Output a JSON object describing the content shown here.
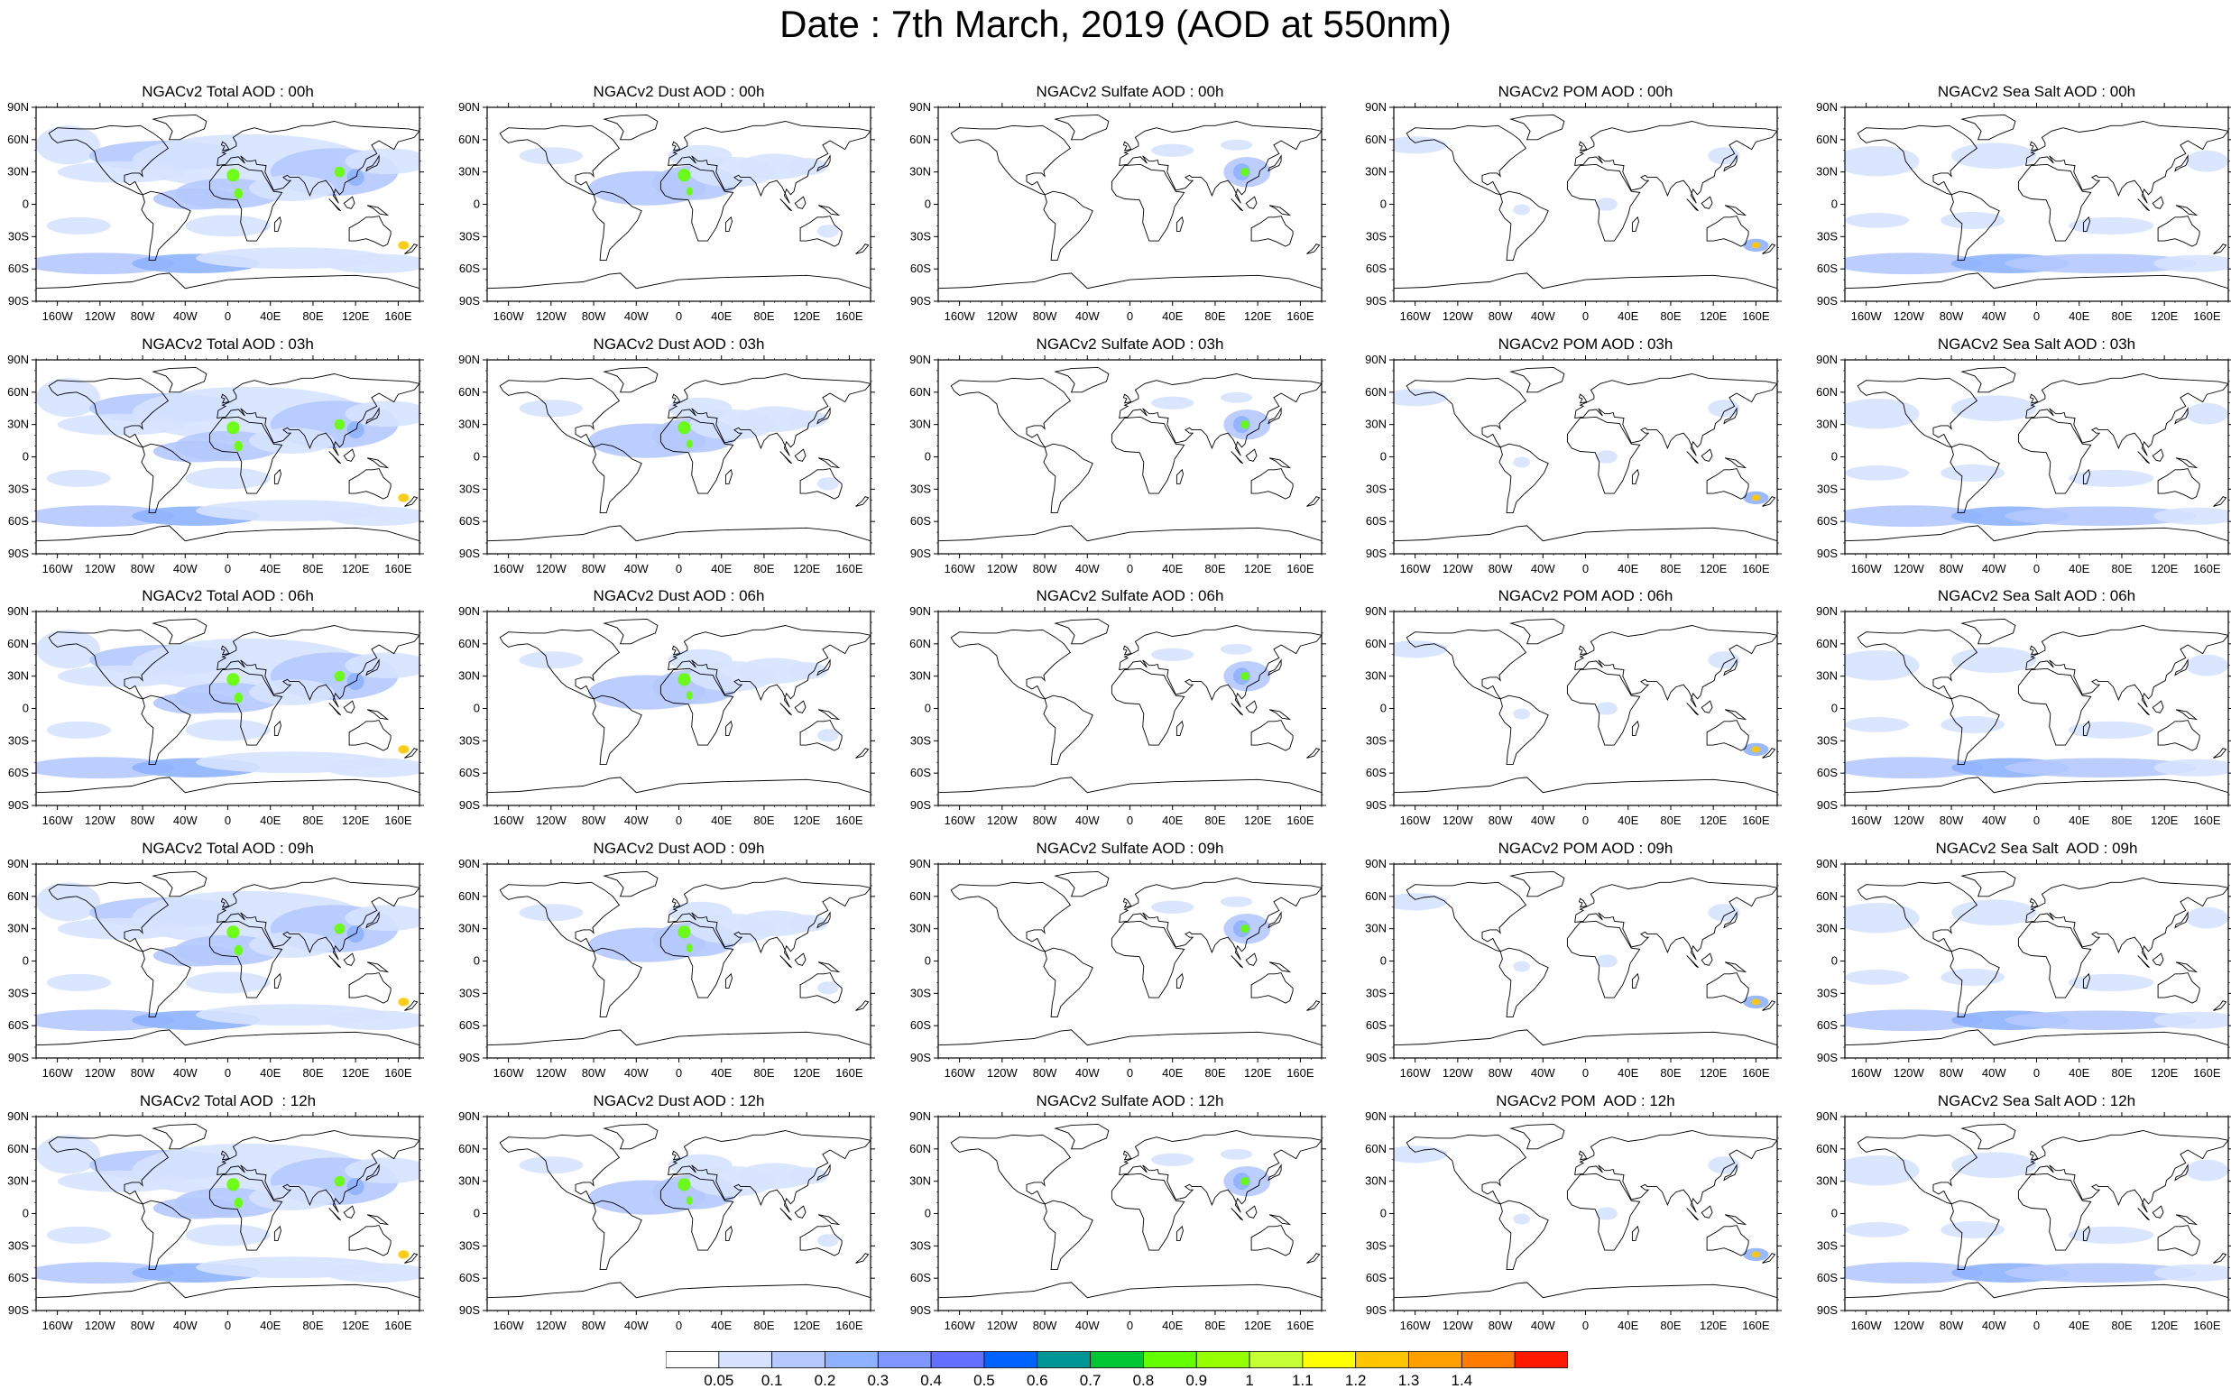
{
  "title": "Date : 7th March, 2019 (AOD at 550nm)",
  "rows": [
    {
      "hour": "00h",
      "panels": [
        "NGACv2 Total AOD : 00h",
        "NGACv2 Dust AOD : 00h",
        "NGACv2 Sulfate AOD : 00h",
        "NGACv2 POM AOD : 00h",
        "NGACv2 Sea Salt AOD : 00h"
      ]
    },
    {
      "hour": "03h",
      "panels": [
        "NGACv2 Total AOD : 03h",
        "NGACv2 Dust AOD : 03h",
        "NGACv2 Sulfate AOD : 03h",
        "NGACv2 POM AOD : 03h",
        "NGACv2 Sea Salt AOD : 03h"
      ]
    },
    {
      "hour": "06h",
      "panels": [
        "NGACv2 Total AOD : 06h",
        "NGACv2 Dust AOD : 06h",
        "NGACv2 Sulfate AOD : 06h",
        "NGACv2 POM AOD : 06h",
        "NGACv2 Sea Salt AOD : 06h"
      ]
    },
    {
      "hour": "09h",
      "panels": [
        "NGACv2 Total AOD : 09h",
        "NGACv2 Dust AOD : 09h",
        "NGACv2 Sulfate AOD : 09h",
        "NGACv2 POM AOD : 09h",
        "NGACv2 Sea Salt  AOD : 09h"
      ]
    },
    {
      "hour": "12h",
      "panels": [
        "NGACv2 Total AOD  : 12h",
        "NGACv2 Dust AOD : 12h",
        "NGACv2 Sulfate AOD : 12h",
        "NGACv2 POM  AOD : 12h",
        "NGACv2 Sea Salt AOD : 12h"
      ]
    }
  ],
  "species": [
    "Total",
    "Dust",
    "Sulfate",
    "POM",
    "Sea Salt"
  ],
  "map_extent": {
    "lon": [
      -180,
      180
    ],
    "lat": [
      -90,
      90
    ]
  },
  "lat_tick_labels": [
    "90N",
    "60N",
    "30N",
    "0",
    "30S",
    "60S",
    "90S"
  ],
  "lon_tick_labels": [
    "160W",
    "120W",
    "80W",
    "40W",
    "0",
    "40E",
    "80E",
    "120E",
    "160E"
  ],
  "colorbar": {
    "labels": [
      "0.05",
      "0.1",
      "0.2",
      "0.3",
      "0.4",
      "0.5",
      "0.6",
      "0.7",
      "0.8",
      "0.9",
      "1",
      "1.1",
      "1.2",
      "1.3",
      "1.4"
    ],
    "colors": [
      "#ffffff",
      "#d6e2ff",
      "#b5c9ff",
      "#8eb2ff",
      "#7f96ff",
      "#6370ff",
      "#0063ff",
      "#009696",
      "#00c633",
      "#63ff00",
      "#96ff00",
      "#c6ff33",
      "#ffff00",
      "#ffc600",
      "#ffa000",
      "#ff7c00",
      "#ff1900"
    ]
  },
  "colors": {
    "ocean_low": "#d6e2ff",
    "aerosol_mid": "#b5c9ff",
    "aerosol_high": "#8eb2ff",
    "plume_core": "#63ff00",
    "hotspot": "#ffc600",
    "coastline": "#000000"
  }
}
